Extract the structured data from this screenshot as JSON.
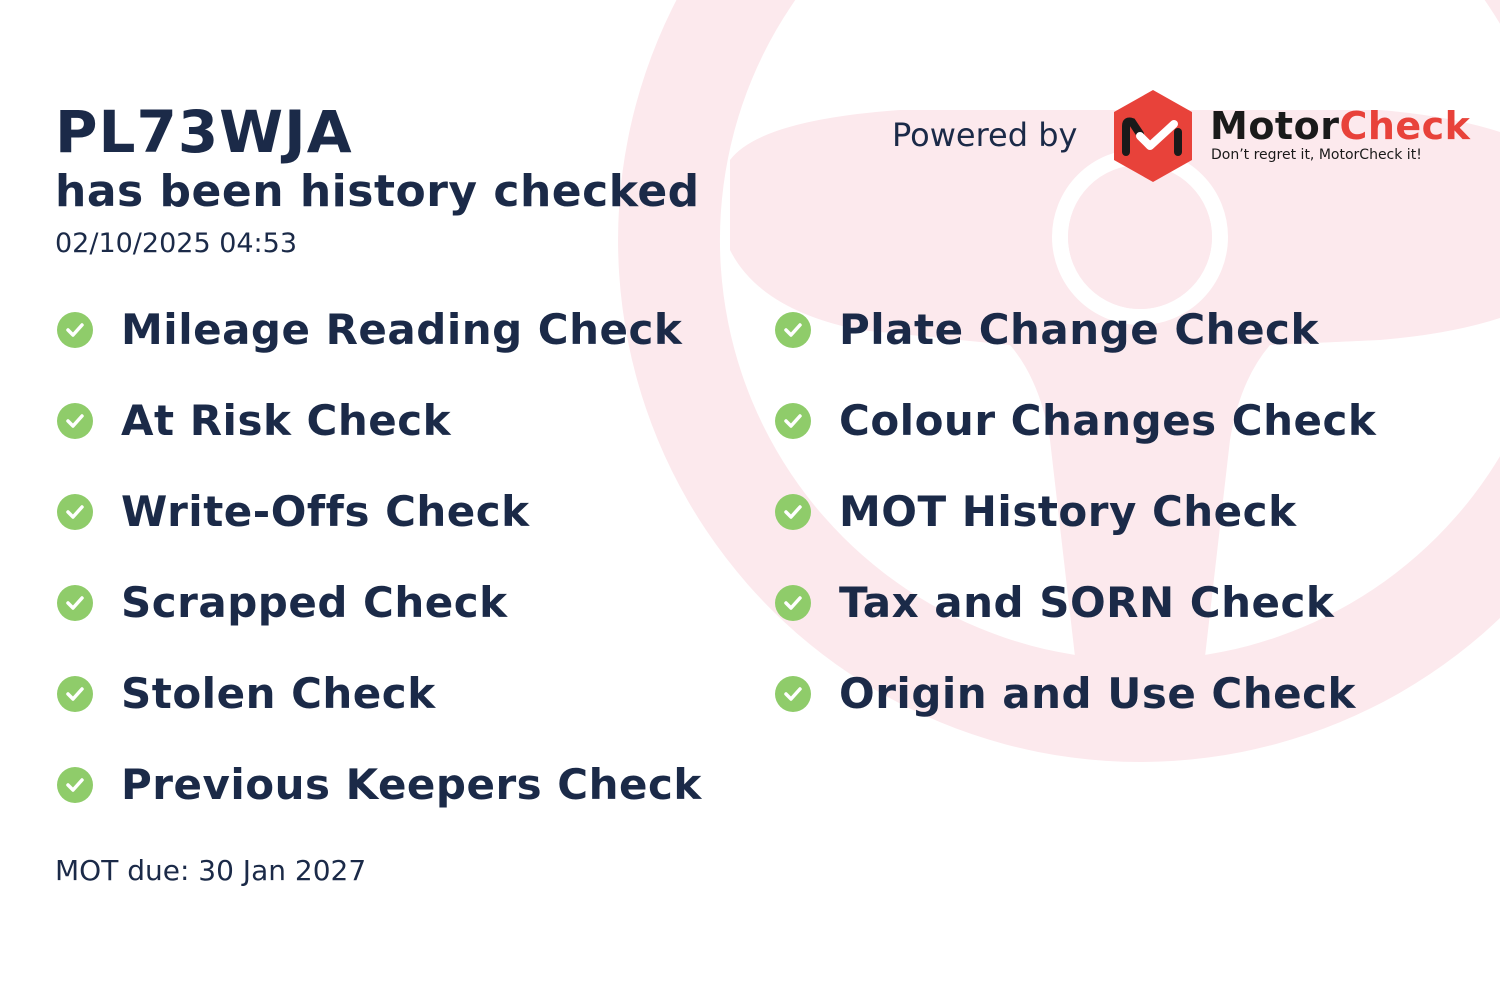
{
  "header": {
    "plate": "PL73WJA",
    "subtitle": "has been history checked",
    "datetime": "02/10/2025 04:53"
  },
  "checks_left": [
    {
      "label": "Mileage Reading Check",
      "icon": "check-circle-icon",
      "status": "passed"
    },
    {
      "label": "At Risk Check",
      "icon": "check-circle-icon",
      "status": "passed"
    },
    {
      "label": "Write-Offs Check",
      "icon": "check-circle-icon",
      "status": "passed"
    },
    {
      "label": "Scrapped Check",
      "icon": "check-circle-icon",
      "status": "passed"
    },
    {
      "label": "Stolen Check",
      "icon": "check-circle-icon",
      "status": "passed"
    },
    {
      "label": "Previous Keepers Check",
      "icon": "check-circle-icon",
      "status": "passed"
    }
  ],
  "checks_right": [
    {
      "label": "Plate Change Check",
      "icon": "check-circle-icon",
      "status": "passed"
    },
    {
      "label": "Colour Changes Check",
      "icon": "check-circle-icon",
      "status": "passed"
    },
    {
      "label": "MOT History Check",
      "icon": "check-circle-icon",
      "status": "passed"
    },
    {
      "label": "Tax and SORN Check",
      "icon": "check-circle-icon",
      "status": "passed"
    },
    {
      "label": "Origin and Use Check",
      "icon": "check-circle-icon",
      "status": "passed"
    }
  ],
  "footer": {
    "mot_due": "MOT due: 30 Jan 2027"
  },
  "branding": {
    "powered_by": "Powered by",
    "brand_part1": "Motor",
    "brand_part2": "Check",
    "tagline": "Don’t regret it, MotorCheck it!"
  },
  "colors": {
    "text": "#1b2a48",
    "check": "#8fcc6a",
    "brand_red": "#e8423a",
    "watermark": "#fce9ed"
  }
}
